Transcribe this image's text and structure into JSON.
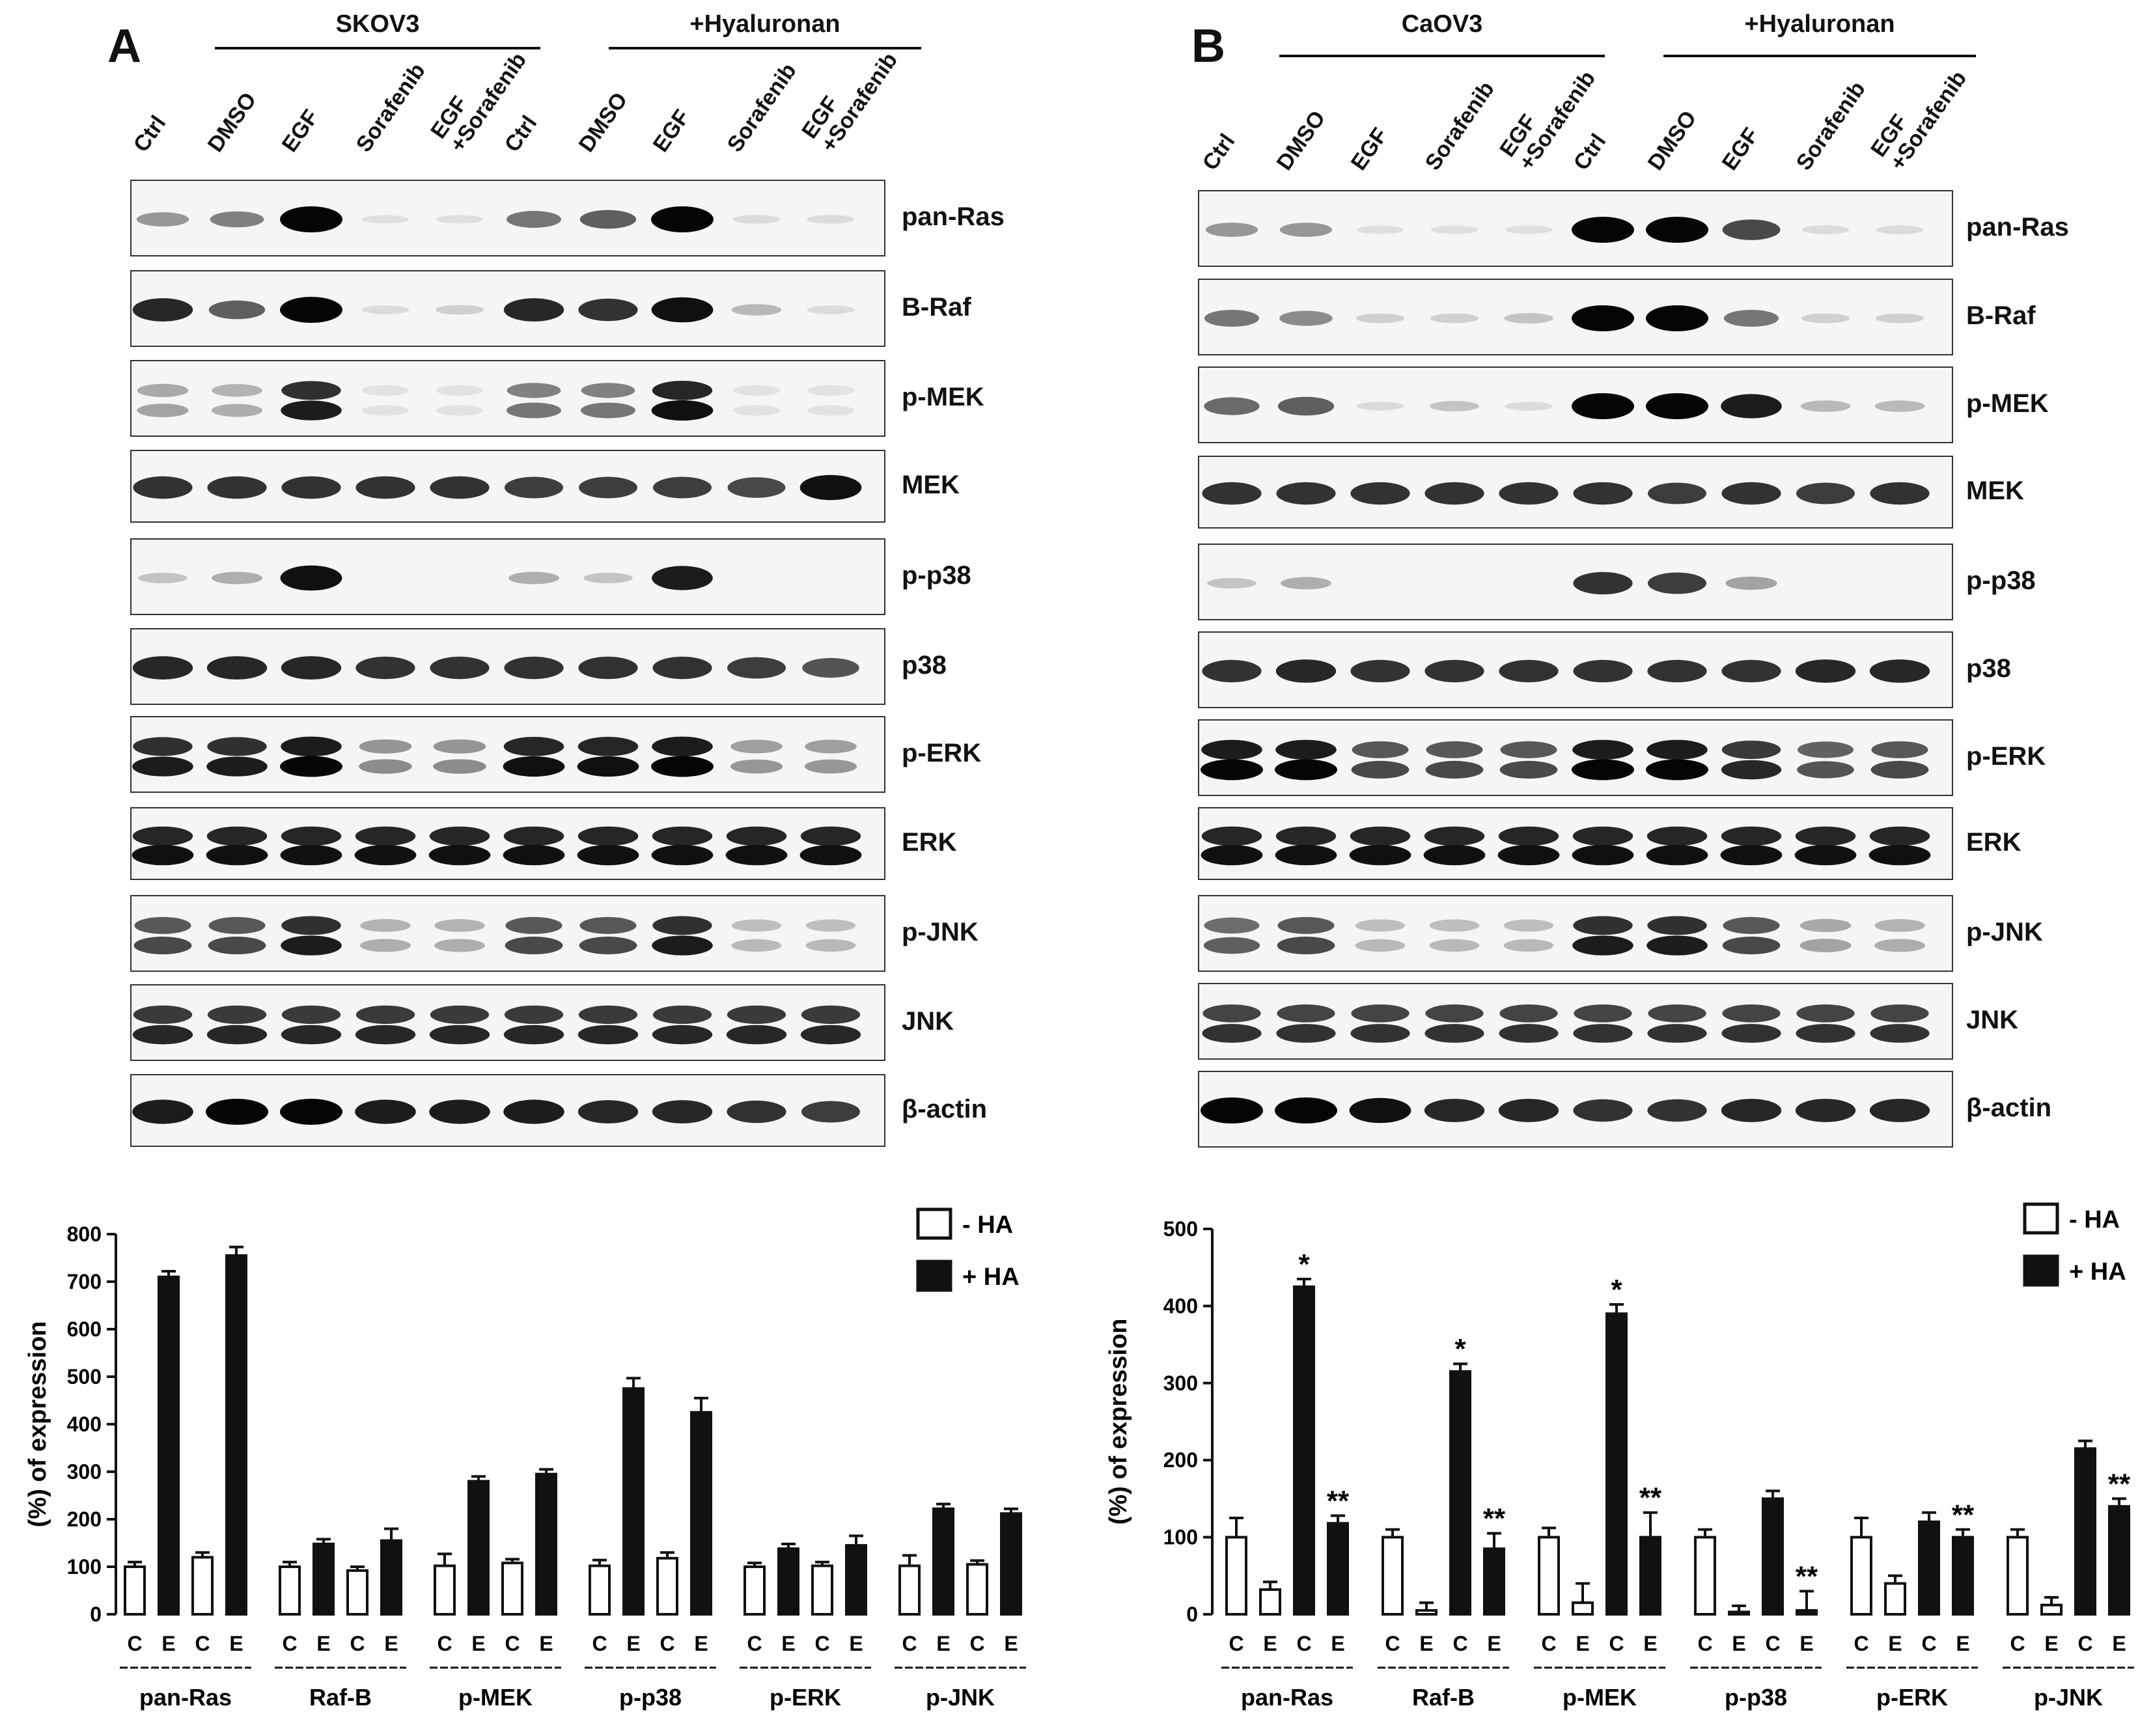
{
  "panels": [
    {
      "letter": "A",
      "cell_line": "SKOV3",
      "treatment_group": "+Hyaluronan",
      "lanes": [
        "Ctrl",
        "DMSO",
        "EGF",
        "Sorafenib",
        "EGF\n+Sorafenib",
        "Ctrl",
        "DMSO",
        "EGF",
        "Sorafenib",
        "EGF\n+Sorafenib"
      ],
      "blots": [
        "pan-Ras",
        "B-Raf",
        "p-MEK",
        "MEK",
        "p-p38",
        "p38",
        "p-ERK",
        "ERK",
        "p-JNK",
        "JNK",
        "β-actin"
      ],
      "band_intensity": {
        "pan-Ras": [
          0.35,
          0.45,
          1.0,
          0.03,
          0.03,
          0.5,
          0.6,
          1.0,
          0.05,
          0.05
        ],
        "B-Raf": [
          0.85,
          0.6,
          1.0,
          0.05,
          0.1,
          0.85,
          0.8,
          0.95,
          0.2,
          0.05
        ],
        "p-MEK": [
          0.3,
          0.25,
          0.9,
          0.02,
          0.02,
          0.5,
          0.5,
          0.95,
          0.02,
          0.02
        ],
        "MEK": [
          0.8,
          0.8,
          0.8,
          0.8,
          0.8,
          0.75,
          0.75,
          0.75,
          0.7,
          0.95
        ],
        "p-p38": [
          0.15,
          0.25,
          0.95,
          0.0,
          0.0,
          0.25,
          0.15,
          0.9,
          0.0,
          0.0
        ],
        "p38": [
          0.85,
          0.85,
          0.85,
          0.8,
          0.8,
          0.8,
          0.8,
          0.8,
          0.75,
          0.65
        ],
        "p-ERK": [
          0.9,
          0.9,
          1.0,
          0.4,
          0.4,
          0.95,
          0.95,
          1.0,
          0.35,
          0.35
        ],
        "ERK": [
          0.95,
          0.95,
          0.95,
          0.95,
          0.95,
          0.95,
          0.95,
          0.95,
          0.95,
          0.95
        ],
        "p-JNK": [
          0.7,
          0.7,
          0.9,
          0.25,
          0.25,
          0.7,
          0.7,
          0.9,
          0.2,
          0.2
        ],
        "JNK": [
          0.85,
          0.85,
          0.85,
          0.85,
          0.85,
          0.85,
          0.85,
          0.85,
          0.85,
          0.85
        ],
        "β-actin": [
          0.9,
          1.0,
          1.0,
          0.9,
          0.9,
          0.9,
          0.85,
          0.85,
          0.8,
          0.75
        ]
      },
      "band_rows": {
        "pan-Ras": 1,
        "B-Raf": 1,
        "p-MEK": 2,
        "MEK": 1,
        "p-p38": 1,
        "p38": 1,
        "p-ERK": 2,
        "ERK": 2,
        "p-JNK": 2,
        "JNK": 2,
        "β-actin": 1
      }
    },
    {
      "letter": "B",
      "cell_line": "CaOV3",
      "treatment_group": "+Hyaluronan",
      "lanes": [
        "Ctrl",
        "DMSO",
        "EGF",
        "Sorafenib",
        "EGF\n+Sorafenib",
        "Ctrl",
        "DMSO",
        "EGF",
        "Sorafenib",
        "EGF\n+Sorafenib"
      ],
      "blots": [
        "pan-Ras",
        "B-Raf",
        "p-MEK",
        "MEK",
        "p-p38",
        "p38",
        "p-ERK",
        "ERK",
        "p-JNK",
        "JNK",
        "β-actin"
      ],
      "band_intensity": {
        "pan-Ras": [
          0.35,
          0.35,
          0.03,
          0.03,
          0.03,
          1.0,
          1.0,
          0.7,
          0.05,
          0.05
        ],
        "B-Raf": [
          0.5,
          0.4,
          0.1,
          0.1,
          0.15,
          1.0,
          1.0,
          0.5,
          0.1,
          0.1
        ],
        "p-MEK": [
          0.55,
          0.6,
          0.05,
          0.15,
          0.05,
          1.0,
          1.0,
          0.9,
          0.2,
          0.2
        ],
        "MEK": [
          0.8,
          0.8,
          0.8,
          0.8,
          0.8,
          0.8,
          0.75,
          0.8,
          0.75,
          0.8
        ],
        "p-p38": [
          0.15,
          0.25,
          0.0,
          0.0,
          0.0,
          0.8,
          0.75,
          0.3,
          0.0,
          0.0
        ],
        "p38": [
          0.8,
          0.85,
          0.8,
          0.8,
          0.8,
          0.8,
          0.8,
          0.8,
          0.85,
          0.85
        ],
        "p-ERK": [
          1.0,
          1.0,
          0.7,
          0.7,
          0.7,
          1.0,
          1.0,
          0.85,
          0.65,
          0.7
        ],
        "ERK": [
          0.95,
          0.95,
          0.95,
          0.95,
          0.95,
          0.95,
          0.95,
          0.95,
          0.95,
          0.95
        ],
        "p-JNK": [
          0.6,
          0.7,
          0.2,
          0.2,
          0.2,
          0.9,
          0.9,
          0.7,
          0.3,
          0.25
        ],
        "JNK": [
          0.8,
          0.8,
          0.8,
          0.8,
          0.8,
          0.8,
          0.8,
          0.8,
          0.8,
          0.8
        ],
        "β-actin": [
          1.0,
          1.0,
          0.95,
          0.85,
          0.85,
          0.8,
          0.8,
          0.85,
          0.85,
          0.85
        ]
      },
      "band_rows": {
        "pan-Ras": 1,
        "B-Raf": 1,
        "p-MEK": 1,
        "MEK": 1,
        "p-p38": 1,
        "p38": 1,
        "p-ERK": 2,
        "ERK": 2,
        "p-JNK": 2,
        "JNK": 2,
        "β-actin": 1
      }
    }
  ],
  "chart_data": [
    {
      "type": "bar",
      "ylabel": "(%) of expression",
      "ylim": [
        0,
        800
      ],
      "yticks": [
        0,
        100,
        200,
        300,
        400,
        500,
        600,
        700,
        800
      ],
      "categories": [
        "pan-Ras",
        "Raf-B",
        "p-MEK",
        "p-p38",
        "p-ERK",
        "p-JNK"
      ],
      "subcategories": [
        "C",
        "E",
        "C",
        "E"
      ],
      "legend": [
        "- HA",
        "+ HA"
      ],
      "legend_position": "top-right",
      "bars": [
        {
          "values": [
            100,
            710,
            120,
            755
          ],
          "errors": [
            10,
            12,
            10,
            18
          ]
        },
        {
          "values": [
            100,
            148,
            92,
            155
          ],
          "errors": [
            10,
            10,
            8,
            25
          ]
        },
        {
          "values": [
            102,
            280,
            108,
            295
          ],
          "errors": [
            25,
            10,
            8,
            10
          ]
        },
        {
          "values": [
            102,
            475,
            118,
            425
          ],
          "errors": [
            12,
            22,
            12,
            30
          ]
        },
        {
          "values": [
            100,
            138,
            102,
            145
          ],
          "errors": [
            8,
            10,
            8,
            20
          ]
        },
        {
          "values": [
            102,
            222,
            105,
            212
          ],
          "errors": [
            22,
            10,
            8,
            10
          ]
        }
      ],
      "fill": [
        "white",
        "black",
        "white",
        "black"
      ],
      "stars": [
        [
          "",
          "",
          "",
          ""
        ],
        [
          "",
          "",
          "",
          ""
        ],
        [
          "",
          "",
          "",
          ""
        ],
        [
          "",
          "",
          "",
          ""
        ],
        [
          "",
          "",
          "",
          ""
        ],
        [
          "",
          "",
          "",
          ""
        ]
      ]
    },
    {
      "type": "bar",
      "ylabel": "(%) of expression",
      "ylim": [
        0,
        500
      ],
      "yticks": [
        0,
        100,
        200,
        300,
        400,
        500
      ],
      "categories": [
        "pan-Ras",
        "Raf-B",
        "p-MEK",
        "p-p38",
        "p-ERK",
        "p-JNK"
      ],
      "subcategories": [
        "C",
        "E",
        "C",
        "E"
      ],
      "legend": [
        "- HA",
        "+ HA"
      ],
      "legend_position": "top-right",
      "bars": [
        {
          "values": [
            100,
            32,
            425,
            118
          ],
          "errors": [
            25,
            10,
            10,
            10
          ]
        },
        {
          "values": [
            100,
            5,
            315,
            85
          ],
          "errors": [
            10,
            10,
            10,
            20
          ]
        },
        {
          "values": [
            100,
            15,
            390,
            100
          ],
          "errors": [
            12,
            25,
            12,
            32
          ]
        },
        {
          "values": [
            100,
            3,
            150,
            5
          ],
          "errors": [
            10,
            8,
            10,
            25
          ]
        },
        {
          "values": [
            100,
            40,
            120,
            100
          ],
          "errors": [
            25,
            10,
            12,
            10
          ]
        },
        {
          "values": [
            100,
            12,
            215,
            140
          ],
          "errors": [
            10,
            10,
            10,
            10
          ]
        }
      ],
      "fill": [
        "white",
        "white",
        "black",
        "black"
      ],
      "stars": [
        [
          "",
          "",
          "*",
          "**"
        ],
        [
          "",
          "",
          "*",
          "**"
        ],
        [
          "",
          "",
          "*",
          "**"
        ],
        [
          "",
          "",
          "",
          "**"
        ],
        [
          "",
          "",
          "",
          "**"
        ],
        [
          "",
          "",
          "",
          "**"
        ]
      ]
    }
  ]
}
